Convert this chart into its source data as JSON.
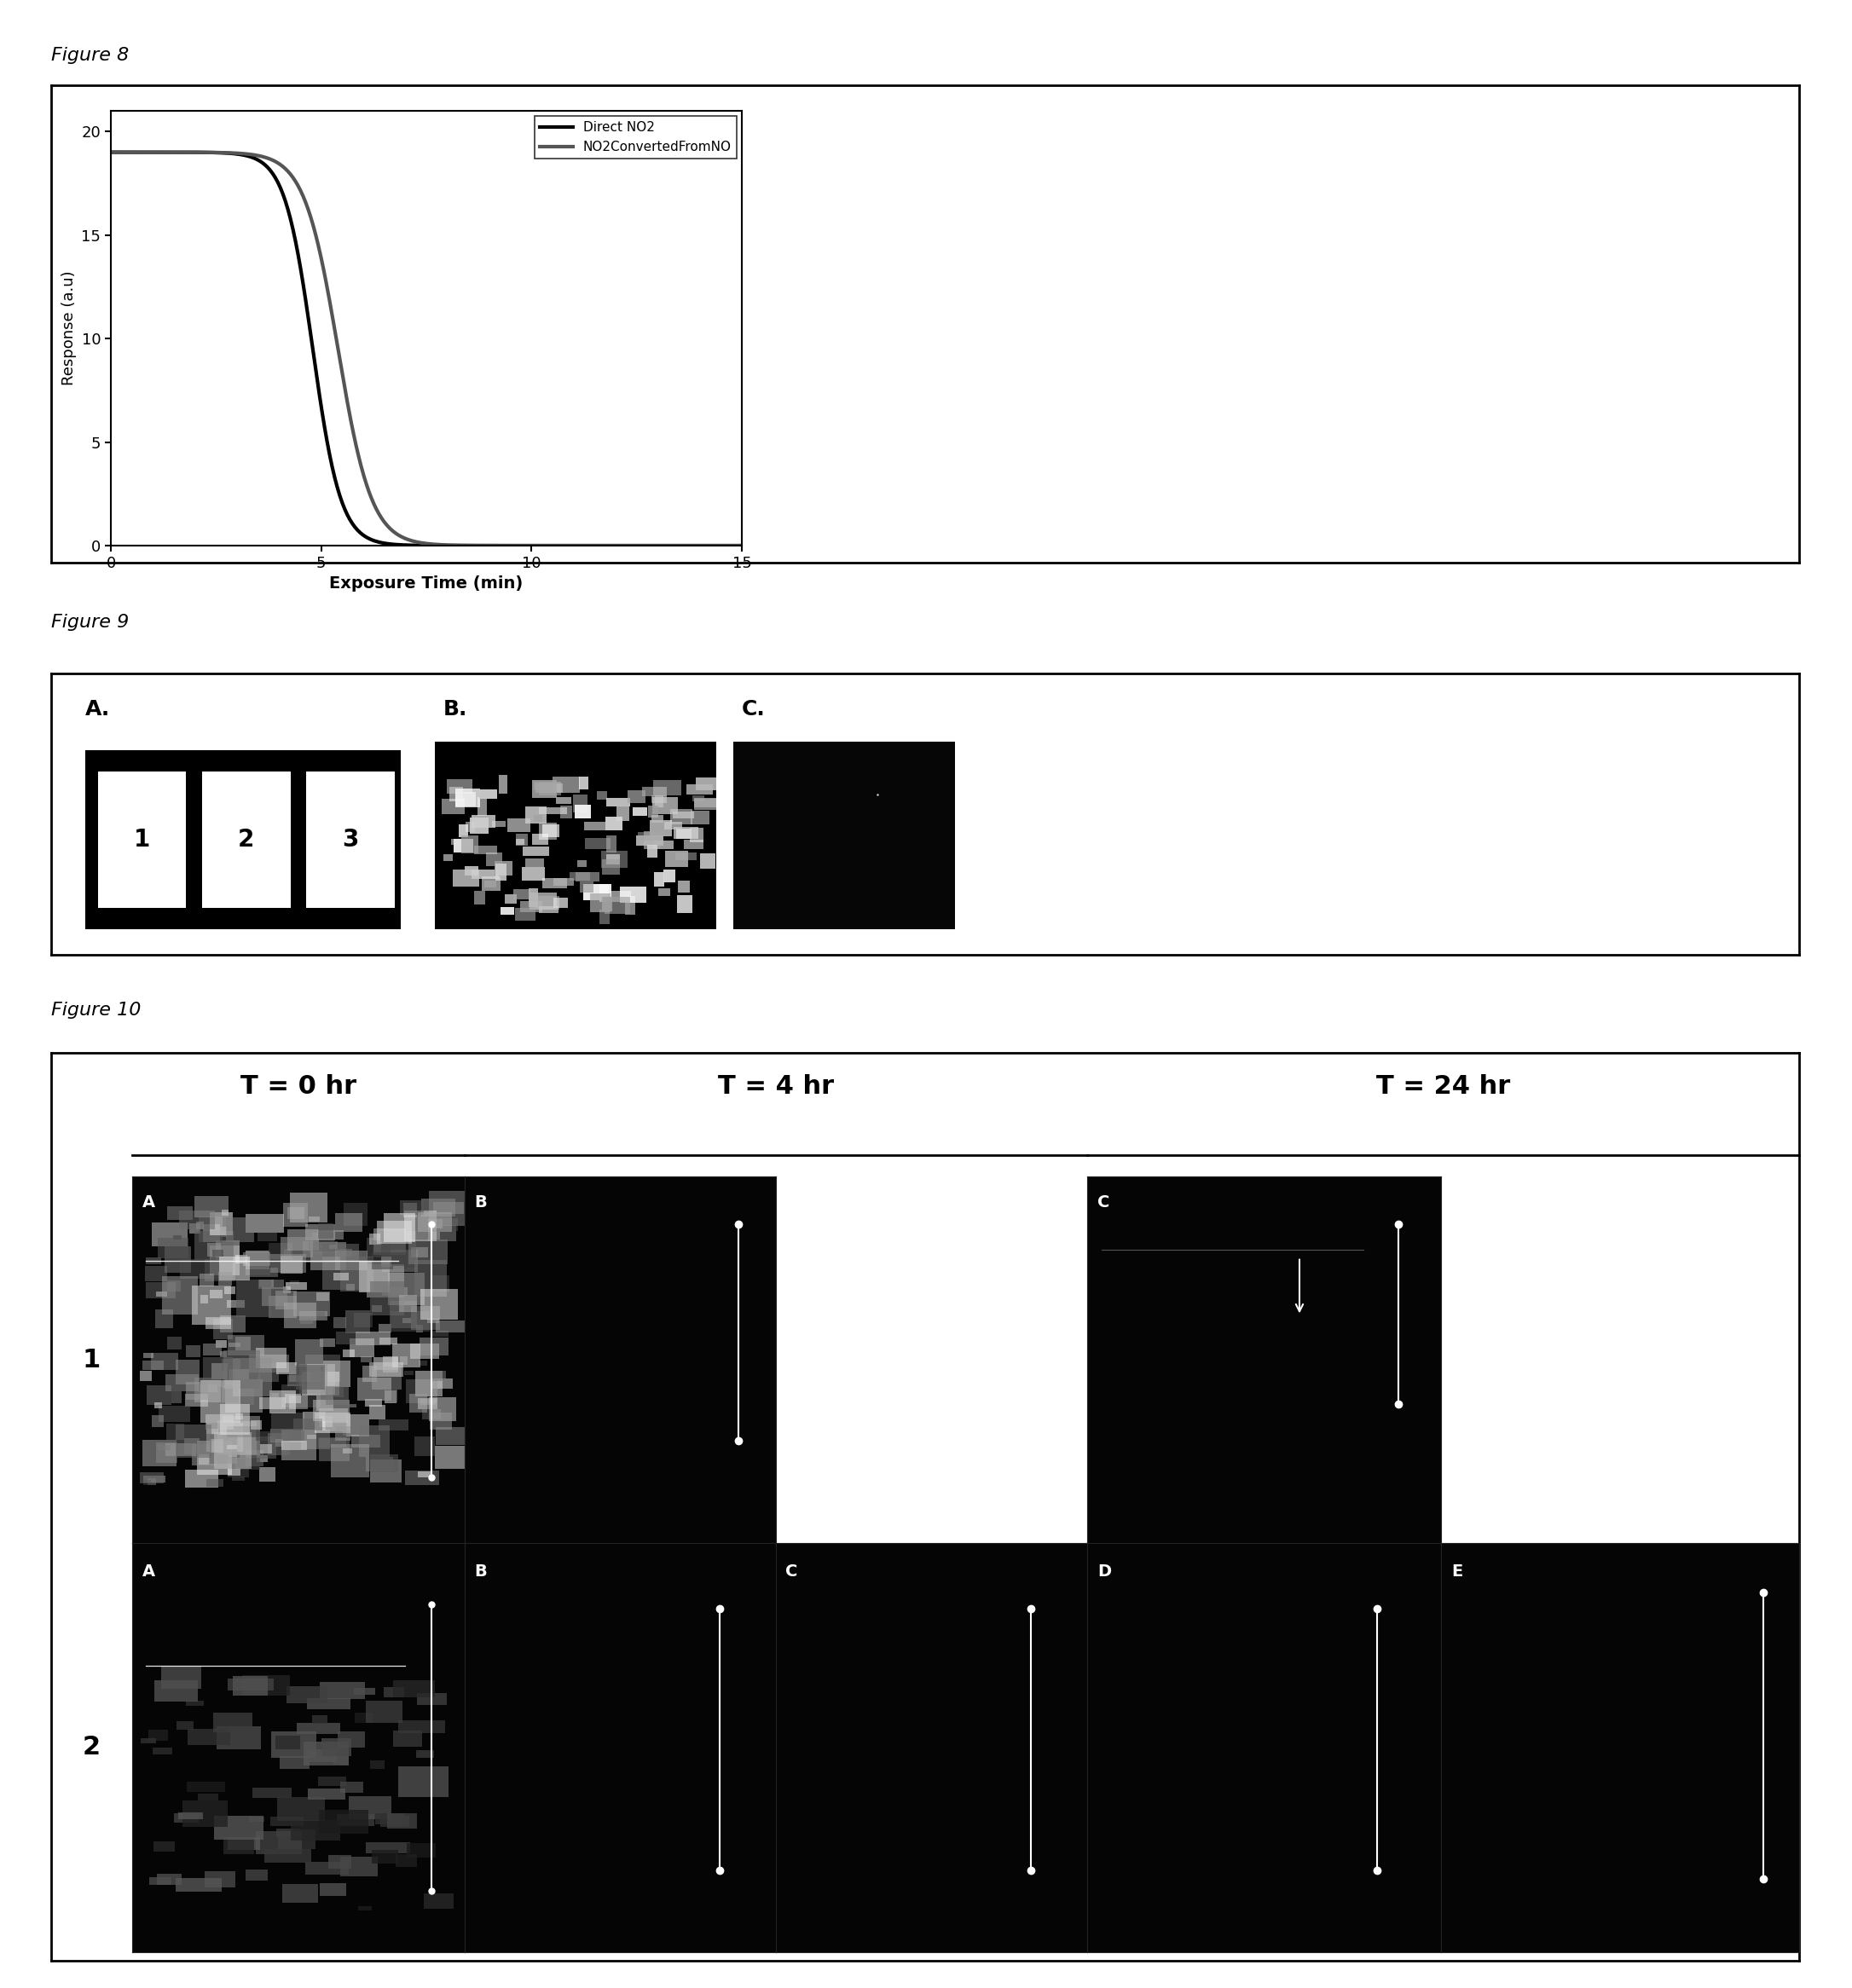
{
  "fig8_title": "Figure 8",
  "fig9_title": "Figure 9",
  "fig10_title": "Figure 10",
  "line1_label": "Direct NO2",
  "line2_label": "NO2ConvertedFromNO",
  "xlabel": "Exposure Time (min)",
  "ylabel": "Response (a.u)",
  "xlim": [
    0,
    15
  ],
  "ylim": [
    0,
    21
  ],
  "yticks": [
    0,
    5,
    10,
    15,
    20
  ],
  "xticks": [
    0,
    5,
    10,
    15
  ],
  "line_color1": "#000000",
  "line_color2": "#555555",
  "fig10_time_labels": [
    "T = 0 hr",
    "T = 4 hr",
    "T = 24 hr"
  ]
}
